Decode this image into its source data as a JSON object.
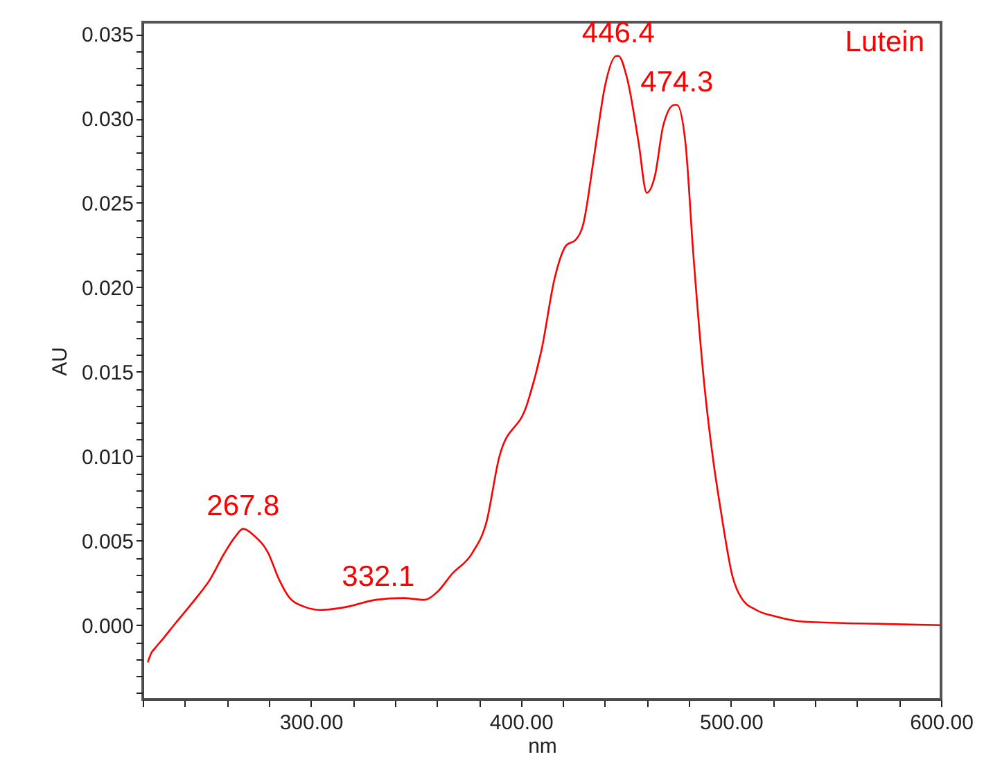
{
  "chart_data": {
    "type": "line",
    "xlabel": "nm",
    "ylabel": "AU",
    "x": [
      222.4,
      224.3,
      225.6,
      229,
      235.5,
      245.4,
      252,
      258.6,
      263.8,
      267.8,
      273,
      279.6,
      284.9,
      290,
      296.7,
      304.6,
      317.8,
      331,
      344,
      354,
      360.5,
      367,
      377,
      383.6,
      389.6,
      403,
      410,
      416,
      421.7,
      426,
      429.6,
      434.9,
      440,
      445.4,
      446.4,
      450.7,
      456,
      459.9,
      463.8,
      467.8,
      473,
      474.3,
      478.3,
      482,
      487.5,
      491.4,
      495.4,
      500.7,
      505,
      512,
      521.7,
      535,
      561,
      600
    ],
    "series": [
      {
        "name": "Lutein",
        "color": "#ff0000",
        "values": [
          -0.0022,
          -0.0016,
          -0.0014,
          -0.0009,
          0.0001,
          0.0016,
          0.0027,
          0.0042,
          0.0052,
          0.0057,
          0.0053,
          0.0043,
          0.0027,
          0.0016,
          0.0011,
          0.0009,
          0.0011,
          0.0015,
          0.0016,
          0.0015,
          0.002,
          0.003,
          0.0043,
          0.0061,
          0.0099,
          0.0131,
          0.0164,
          0.0205,
          0.0225,
          0.0228,
          0.0237,
          0.0278,
          0.0319,
          0.0337,
          0.0337,
          0.0323,
          0.0286,
          0.0256,
          0.0266,
          0.0296,
          0.0308,
          0.0308,
          0.0286,
          0.0221,
          0.014,
          0.0099,
          0.0066,
          0.0029,
          0.0016,
          0.0009,
          0.0005,
          0.0002,
          0.0001,
          0
        ]
      }
    ],
    "annotations": [
      {
        "text": "267.8",
        "x": 267.8,
        "y": 0.0057
      },
      {
        "text": "332.1",
        "x": 332.1,
        "y": 0.0015
      },
      {
        "text": "446.4",
        "x": 446.4,
        "y": 0.0337
      },
      {
        "text": "474.3",
        "x": 474.3,
        "y": 0.0308
      }
    ],
    "xlim": [
      220,
      600
    ],
    "ylim": [
      -0.0044,
      0.0357
    ],
    "xticks": [
      {
        "value": 220,
        "label": null
      },
      {
        "value": 240,
        "label": null
      },
      {
        "value": 260,
        "label": null
      },
      {
        "value": 280,
        "label": null
      },
      {
        "value": 300,
        "label": "300.00"
      },
      {
        "value": 320,
        "label": null
      },
      {
        "value": 340,
        "label": null
      },
      {
        "value": 360,
        "label": null
      },
      {
        "value": 380,
        "label": null
      },
      {
        "value": 400,
        "label": "400.00"
      },
      {
        "value": 420,
        "label": null
      },
      {
        "value": 440,
        "label": null
      },
      {
        "value": 460,
        "label": null
      },
      {
        "value": 480,
        "label": null
      },
      {
        "value": 500,
        "label": "500.00"
      },
      {
        "value": 520,
        "label": null
      },
      {
        "value": 540,
        "label": null
      },
      {
        "value": 560,
        "label": null
      },
      {
        "value": 580,
        "label": null
      },
      {
        "value": 600,
        "label": "600.00"
      }
    ],
    "yticks": [
      {
        "value": -0.004,
        "label": null
      },
      {
        "value": -0.003,
        "label": null
      },
      {
        "value": -0.002,
        "label": null
      },
      {
        "value": -0.001,
        "label": null
      },
      {
        "value": 0,
        "label": "0.000"
      },
      {
        "value": 0.001,
        "label": null
      },
      {
        "value": 0.002,
        "label": null
      },
      {
        "value": 0.003,
        "label": null
      },
      {
        "value": 0.004,
        "label": null
      },
      {
        "value": 0.005,
        "label": "0.005"
      },
      {
        "value": 0.006,
        "label": null
      },
      {
        "value": 0.007,
        "label": null
      },
      {
        "value": 0.008,
        "label": null
      },
      {
        "value": 0.009,
        "label": null
      },
      {
        "value": 0.01,
        "label": "0.010"
      },
      {
        "value": 0.011,
        "label": null
      },
      {
        "value": 0.012,
        "label": null
      },
      {
        "value": 0.013,
        "label": null
      },
      {
        "value": 0.014,
        "label": null
      },
      {
        "value": 0.015,
        "label": "0.015"
      },
      {
        "value": 0.016,
        "label": null
      },
      {
        "value": 0.017,
        "label": null
      },
      {
        "value": 0.018,
        "label": null
      },
      {
        "value": 0.019,
        "label": null
      },
      {
        "value": 0.02,
        "label": "0.020"
      },
      {
        "value": 0.021,
        "label": null
      },
      {
        "value": 0.022,
        "label": null
      },
      {
        "value": 0.023,
        "label": null
      },
      {
        "value": 0.024,
        "label": null
      },
      {
        "value": 0.025,
        "label": "0.025"
      },
      {
        "value": 0.026,
        "label": null
      },
      {
        "value": 0.027,
        "label": null
      },
      {
        "value": 0.028,
        "label": null
      },
      {
        "value": 0.029,
        "label": null
      },
      {
        "value": 0.03,
        "label": "0.030"
      },
      {
        "value": 0.031,
        "label": null
      },
      {
        "value": 0.032,
        "label": null
      },
      {
        "value": 0.033,
        "label": null
      },
      {
        "value": 0.034,
        "label": null
      },
      {
        "value": 0.035,
        "label": "0.035"
      }
    ],
    "grid": false
  }
}
